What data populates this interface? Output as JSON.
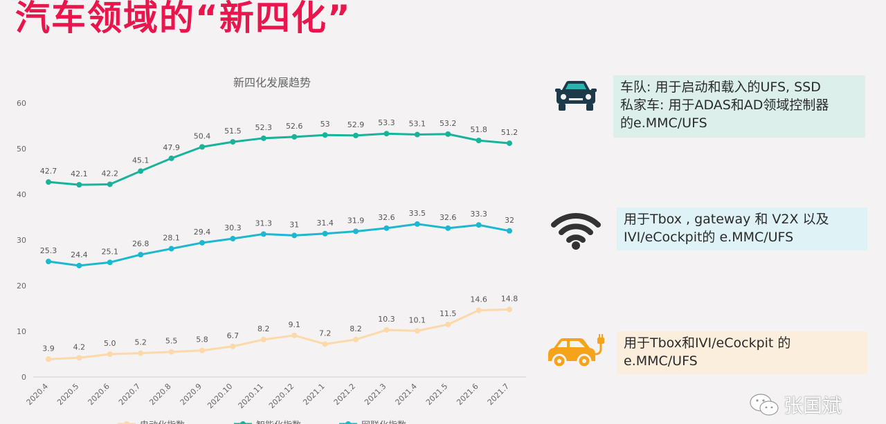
{
  "page": {
    "title": "汽车领域的“新四化”",
    "watermark_text": "张国斌"
  },
  "cards": [
    {
      "icon": "car-front-icon",
      "lines": [
        "车队: 用于启动和载入的UFS, SSD",
        "私家车: 用于ADAS和AD领域控制器",
        "的e.MMC/UFS"
      ]
    },
    {
      "icon": "wifi-icon",
      "lines": [
        "用于Tbox , gateway 和 V2X 以及",
        "IVI/eCockpit的 e.MMC/UFS"
      ]
    },
    {
      "icon": "electric-car-icon",
      "lines": [
        "用于Tbox和IVI/eCockpit 的",
        "e.MMC/UFS"
      ]
    }
  ],
  "colors": {
    "title": "#e8164d",
    "series_electric": "#fdd8a8",
    "series_intelligent": "#19b39b",
    "series_connected": "#1cb8cf",
    "car_icon": "#1c3a4a",
    "ev_icon": "#f5a31a"
  },
  "chart_data": {
    "type": "line",
    "title": "新四化发展趋势",
    "categories": [
      "2020.4",
      "2020.5",
      "2020.6",
      "2020.7",
      "2020.8",
      "2020.9",
      "2020.10",
      "2020.11",
      "2020.12",
      "2021.1",
      "2021.2",
      "2021.3",
      "2021.4",
      "2021.5",
      "2021.6",
      "2021.7"
    ],
    "ylim": [
      0,
      60
    ],
    "yticks": [
      0,
      10,
      20,
      30,
      40,
      50,
      60
    ],
    "grid": false,
    "legend_position": "bottom",
    "series": [
      {
        "name": "电动化指数",
        "color": "#fdd8a8",
        "values": [
          3.9,
          4.2,
          5.0,
          5.2,
          5.5,
          5.8,
          6.7,
          8.2,
          9.1,
          7.2,
          8.2,
          10.3,
          10.1,
          11.5,
          14.6,
          14.8
        ],
        "labels": [
          "3.9",
          "4.2",
          "5.0",
          "5.2",
          "5.5",
          "5.8",
          "6.7",
          "8.2",
          "9.1",
          "7.2",
          "8.2",
          "10.3",
          "10.1",
          "11.5",
          "14.6",
          "14.8"
        ]
      },
      {
        "name": "智能化指数",
        "color": "#19b39b",
        "values": [
          42.7,
          42.1,
          42.2,
          45.1,
          47.9,
          50.4,
          51.5,
          52.3,
          52.6,
          53,
          52.9,
          53.3,
          53.1,
          53.2,
          51.8,
          51.2
        ],
        "labels": [
          "42.7",
          "42.1",
          "42.2",
          "45.1",
          "47.9",
          "50.4",
          "51.5",
          "52.3",
          "52.6",
          "53",
          "52.9",
          "53.3",
          "53.1",
          "53.2",
          "51.8",
          "51.2"
        ]
      },
      {
        "name": "网联化指数",
        "color": "#1cb8cf",
        "values": [
          25.3,
          24.4,
          25.1,
          26.8,
          28.1,
          29.4,
          30.3,
          31.3,
          31,
          31.4,
          31.9,
          32.6,
          33.5,
          32.6,
          33.3,
          32
        ],
        "labels": [
          "25.3",
          "24.4",
          "25.1",
          "26.8",
          "28.1",
          "29.4",
          "30.3",
          "31.3",
          "31",
          "31.4",
          "31.9",
          "32.6",
          "33.5",
          "32.6",
          "33.3",
          "32"
        ]
      }
    ]
  }
}
